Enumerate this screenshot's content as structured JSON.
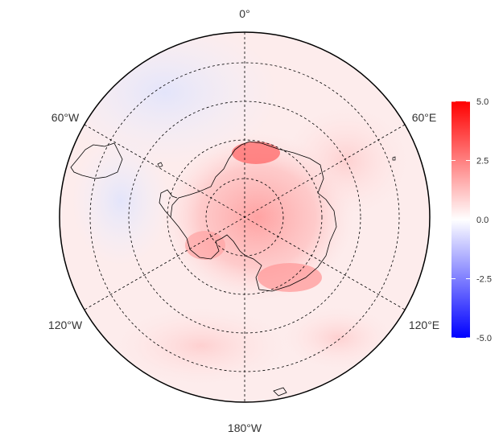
{
  "map": {
    "projection": "south polar stereographic",
    "longitude_labels": [
      {
        "key": "lon-0",
        "text": "0°"
      },
      {
        "key": "lon-60e",
        "text": "60°E"
      },
      {
        "key": "lon-120e",
        "text": "120°E"
      },
      {
        "key": "lon-180",
        "text": "180°W"
      },
      {
        "key": "lon-120w",
        "text": "120°W"
      },
      {
        "key": "lon-60w",
        "text": "60°W"
      }
    ],
    "graticule": "dashed",
    "coastlines": "black outline",
    "fill_color_regions": {
      "antarctic_interior": "strong positive (red)",
      "southern_ocean_near_0_to_60W": "slightly negative (light blue)",
      "elsewhere": "weak positive (light pink)"
    }
  },
  "colorbar": {
    "min": -5.0,
    "max": 5.0,
    "colors": {
      "low": "#0000ff",
      "mid": "#ffffff",
      "high": "#ff0000"
    },
    "ticks": [
      {
        "value": 5.0,
        "label": "5.0"
      },
      {
        "value": 2.5,
        "label": "2.5"
      },
      {
        "value": 0.0,
        "label": "0.0"
      },
      {
        "value": -2.5,
        "label": "-2.5"
      },
      {
        "value": -5.0,
        "label": "-5.0"
      }
    ]
  }
}
